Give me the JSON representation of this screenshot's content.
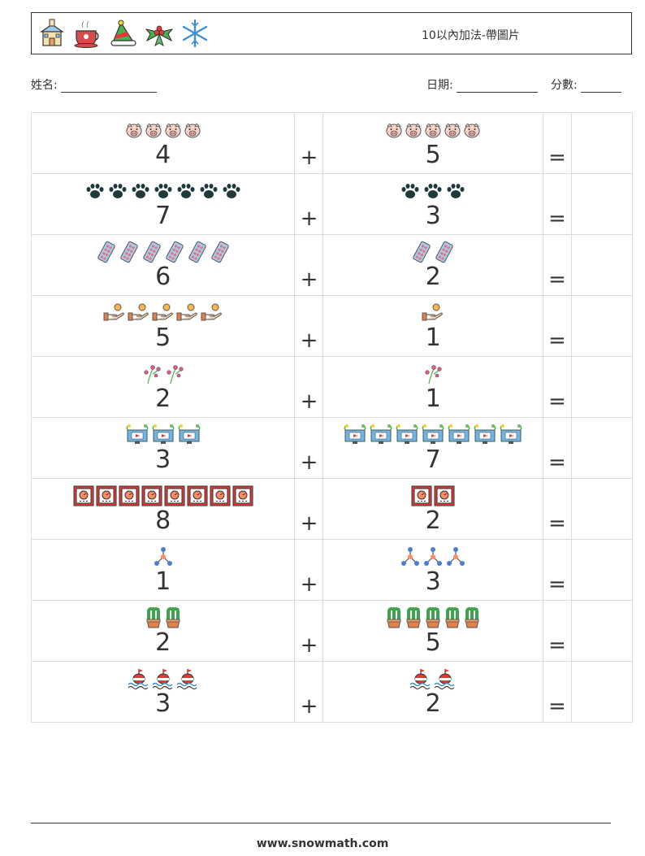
{
  "header": {
    "title": "10以內加法-帶圖片",
    "icons": [
      "church-icon",
      "tea-cup-icon",
      "santa-hat-icon",
      "holly-icon",
      "snowflake-icon"
    ]
  },
  "meta": {
    "name_label": "姓名:",
    "date_label": "日期:",
    "score_label": "分數:"
  },
  "operators": {
    "plus": "+",
    "equals": "="
  },
  "rows": [
    {
      "a": "4",
      "a_icon": "pig-icon",
      "b": "5",
      "b_icon": "pig-icon"
    },
    {
      "a": "7",
      "a_icon": "paw-icon",
      "b": "3",
      "b_icon": "paw-icon"
    },
    {
      "a": "6",
      "a_icon": "pill-pack-icon",
      "b": "2",
      "b_icon": "pill-pack-icon"
    },
    {
      "a": "5",
      "a_icon": "hand-coin-icon",
      "b": "1",
      "b_icon": "hand-coin-icon"
    },
    {
      "a": "2",
      "a_icon": "flower-sprig-icon",
      "b": "1",
      "b_icon": "flower-sprig-icon"
    },
    {
      "a": "3",
      "a_icon": "monitor-plant-icon",
      "b": "7",
      "b_icon": "monitor-plant-icon"
    },
    {
      "a": "8",
      "a_icon": "safe-box-icon",
      "b": "2",
      "b_icon": "safe-box-icon"
    },
    {
      "a": "1",
      "a_icon": "network-icon",
      "b": "3",
      "b_icon": "network-icon"
    },
    {
      "a": "2",
      "a_icon": "cactus-pot-icon",
      "b": "5",
      "b_icon": "cactus-pot-icon"
    },
    {
      "a": "3",
      "a_icon": "buoy-icon",
      "b": "2",
      "b_icon": "buoy-icon"
    }
  ],
  "footer": {
    "url": "www.snowmath.com"
  }
}
